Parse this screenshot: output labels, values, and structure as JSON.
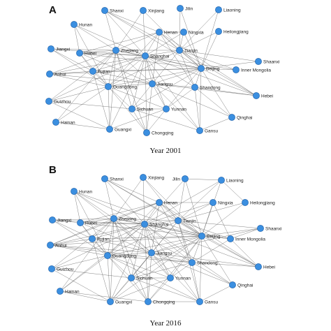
{
  "colors": {
    "node": "#3b8fe0",
    "node_border": "#1d5fa8",
    "edge": "#5a5a5a"
  },
  "panels": [
    {
      "letter": "A",
      "caption": "Year 2001",
      "nodes": [
        "Shanxi",
        "Xinjiang",
        "Jilin",
        "Liaoning",
        "Hunan",
        "Heilongjiang",
        "Henan",
        "Ningxia",
        "Jiangxi",
        "Hubei",
        "Zhejiang",
        "Shanghai",
        "Tianjin",
        "Shaanxi",
        "Fujian",
        "Beijing",
        "Inner Mongolia",
        "Anhui",
        "Guangdong",
        "Jiangsu",
        "Shandong",
        "Hebei",
        "Guizhou",
        "Sichuan",
        "Yunnan",
        "Qinghai",
        "Hainan",
        "Guangxi",
        "Chongqing",
        "Gansu"
      ],
      "edges": [
        [
          "Shanghai",
          "Beijing"
        ],
        [
          "Shanghai",
          "Tianjin"
        ],
        [
          "Shanghai",
          "Zhejiang"
        ],
        [
          "Shanghai",
          "Jiangsu"
        ],
        [
          "Shanghai",
          "Guangdong"
        ],
        [
          "Shanghai",
          "Henan"
        ],
        [
          "Shanghai",
          "Hunan"
        ],
        [
          "Shanghai",
          "Hubei"
        ],
        [
          "Shanghai",
          "Fujian"
        ],
        [
          "Shanghai",
          "Anhui"
        ],
        [
          "Shanghai",
          "Jiangxi"
        ],
        [
          "Shanghai",
          "Sichuan"
        ],
        [
          "Shanghai",
          "Chongqing"
        ],
        [
          "Shanghai",
          "Shandong"
        ],
        [
          "Shanghai",
          "Shanxi"
        ],
        [
          "Shanghai",
          "Xinjiang"
        ],
        [
          "Shanghai",
          "Guangxi"
        ],
        [
          "Shanghai",
          "Yunnan"
        ],
        [
          "Shanghai",
          "Ningxia"
        ],
        [
          "Shanghai",
          "Hebei"
        ],
        [
          "Shanghai",
          "Inner Mongolia"
        ],
        [
          "Shanghai",
          "Guizhou"
        ],
        [
          "Shanghai",
          "Gansu"
        ],
        [
          "Beijing",
          "Tianjin"
        ],
        [
          "Beijing",
          "Zhejiang"
        ],
        [
          "Beijing",
          "Jiangsu"
        ],
        [
          "Beijing",
          "Guangdong"
        ],
        [
          "Beijing",
          "Henan"
        ],
        [
          "Beijing",
          "Shandong"
        ],
        [
          "Beijing",
          "Hebei"
        ],
        [
          "Beijing",
          "Inner Mongolia"
        ],
        [
          "Beijing",
          "Shaanxi"
        ],
        [
          "Beijing",
          "Heilongjiang"
        ],
        [
          "Beijing",
          "Liaoning"
        ],
        [
          "Beijing",
          "Jilin"
        ],
        [
          "Beijing",
          "Ningxia"
        ],
        [
          "Beijing",
          "Qinghai"
        ],
        [
          "Beijing",
          "Gansu"
        ],
        [
          "Beijing",
          "Yunnan"
        ],
        [
          "Beijing",
          "Sichuan"
        ],
        [
          "Beijing",
          "Hubei"
        ],
        [
          "Beijing",
          "Shanxi"
        ],
        [
          "Beijing",
          "Xinjiang"
        ],
        [
          "Beijing",
          "Fujian"
        ],
        [
          "Beijing",
          "Anhui"
        ],
        [
          "Tianjin",
          "Zhejiang"
        ],
        [
          "Tianjin",
          "Jiangsu"
        ],
        [
          "Tianjin",
          "Guangdong"
        ],
        [
          "Tianjin",
          "Henan"
        ],
        [
          "Tianjin",
          "Hebei"
        ],
        [
          "Tianjin",
          "Liaoning"
        ],
        [
          "Tianjin",
          "Jilin"
        ],
        [
          "Tianjin",
          "Shanxi"
        ],
        [
          "Tianjin",
          "Shandong"
        ],
        [
          "Tianjin",
          "Heilongjiang"
        ],
        [
          "Tianjin",
          "Ningxia"
        ],
        [
          "Tianjin",
          "Shaanxi"
        ],
        [
          "Tianjin",
          "Inner Mongolia"
        ],
        [
          "Zhejiang",
          "Jiangsu"
        ],
        [
          "Zhejiang",
          "Guangdong"
        ],
        [
          "Zhejiang",
          "Fujian"
        ],
        [
          "Zhejiang",
          "Hubei"
        ],
        [
          "Zhejiang",
          "Hunan"
        ],
        [
          "Zhejiang",
          "Jiangxi"
        ],
        [
          "Zhejiang",
          "Anhui"
        ],
        [
          "Zhejiang",
          "Sichuan"
        ],
        [
          "Zhejiang",
          "Guangxi"
        ],
        [
          "Zhejiang",
          "Henan"
        ],
        [
          "Zhejiang",
          "Shanxi"
        ],
        [
          "Zhejiang",
          "Guizhou"
        ],
        [
          "Zhejiang",
          "Chongqing"
        ],
        [
          "Zhejiang",
          "Hainan"
        ],
        [
          "Guangdong",
          "Jiangsu"
        ],
        [
          "Guangdong",
          "Fujian"
        ],
        [
          "Guangdong",
          "Hunan"
        ],
        [
          "Guangdong",
          "Hubei"
        ],
        [
          "Guangdong",
          "Guangxi"
        ],
        [
          "Guangdong",
          "Hainan"
        ],
        [
          "Guangdong",
          "Guizhou"
        ],
        [
          "Guangdong",
          "Sichuan"
        ],
        [
          "Guangdong",
          "Chongqing"
        ],
        [
          "Guangdong",
          "Yunnan"
        ],
        [
          "Guangdong",
          "Anhui"
        ],
        [
          "Guangdong",
          "Jiangxi"
        ],
        [
          "Guangdong",
          "Henan"
        ],
        [
          "Jiangsu",
          "Shandong"
        ],
        [
          "Jiangsu",
          "Anhui"
        ],
        [
          "Jiangsu",
          "Henan"
        ],
        [
          "Jiangsu",
          "Sichuan"
        ],
        [
          "Jiangsu",
          "Hubei"
        ],
        [
          "Jiangsu",
          "Fujian"
        ],
        [
          "Jiangsu",
          "Yunnan"
        ],
        [
          "Jiangsu",
          "Chongqing"
        ],
        [
          "Jiangsu",
          "Gansu"
        ],
        [
          "Jiangsu",
          "Qinghai"
        ],
        [
          "Jiangsu",
          "Hebei"
        ],
        [
          "Henan",
          "Hubei"
        ],
        [
          "Henan",
          "Shanxi"
        ],
        [
          "Henan",
          "Hebei"
        ],
        [
          "Henan",
          "Shandong"
        ],
        [
          "Henan",
          "Ningxia"
        ],
        [
          "Shandong",
          "Hebei"
        ],
        [
          "Shandong",
          "Gansu"
        ],
        [
          "Shandong",
          "Yunnan"
        ],
        [
          "Shandong",
          "Qinghai"
        ],
        [
          "Sichuan",
          "Chongqing"
        ],
        [
          "Sichuan",
          "Yunnan"
        ],
        [
          "Sichuan",
          "Guizhou"
        ],
        [
          "Sichuan",
          "Gansu"
        ],
        [
          "Hunan",
          "Hubei"
        ],
        [
          "Hubei",
          "Fujian"
        ],
        [
          "Fujian",
          "Guangxi"
        ],
        [
          "Anhui",
          "Fujian"
        ],
        [
          "Guizhou",
          "Guangxi"
        ],
        [
          "Hainan",
          "Guangxi"
        ],
        [
          "Chongqing",
          "Yunnan"
        ],
        [
          "Gansu",
          "Qinghai"
        ],
        [
          "Yunnan",
          "Guangxi"
        ],
        [
          "Xinjiang",
          "Zhejiang"
        ],
        [
          "Jiangxi",
          "Fujian"
        ]
      ]
    },
    {
      "letter": "B",
      "caption": "Year 2016",
      "nodes": [
        "Shanxi",
        "Xinjiang",
        "Jilin",
        "Liaoning",
        "Hunan",
        "Henan",
        "Ningxia",
        "Heilongjiang",
        "Jiangxi",
        "Hubei",
        "Zhejiang",
        "Shanghai",
        "Tianjin",
        "Shaanxi",
        "Fujian",
        "Beijing",
        "Inner Mongolia",
        "Anhui",
        "Guangdong",
        "Jiangsu",
        "Shandong",
        "Hebei",
        "Guizhou",
        "Sichuan",
        "Yunnan",
        "Qinghai",
        "Hainan",
        "Guangxi",
        "Chongqing",
        "Gansu"
      ],
      "edges": [
        [
          "Shanghai",
          "Beijing"
        ],
        [
          "Shanghai",
          "Tianjin"
        ],
        [
          "Shanghai",
          "Zhejiang"
        ],
        [
          "Shanghai",
          "Jiangsu"
        ],
        [
          "Shanghai",
          "Guangdong"
        ],
        [
          "Shanghai",
          "Henan"
        ],
        [
          "Shanghai",
          "Hunan"
        ],
        [
          "Shanghai",
          "Hubei"
        ],
        [
          "Shanghai",
          "Fujian"
        ],
        [
          "Shanghai",
          "Anhui"
        ],
        [
          "Shanghai",
          "Jiangxi"
        ],
        [
          "Shanghai",
          "Sichuan"
        ],
        [
          "Shanghai",
          "Chongqing"
        ],
        [
          "Shanghai",
          "Shandong"
        ],
        [
          "Shanghai",
          "Shanxi"
        ],
        [
          "Shanghai",
          "Xinjiang"
        ],
        [
          "Shanghai",
          "Guangxi"
        ],
        [
          "Shanghai",
          "Yunnan"
        ],
        [
          "Shanghai",
          "Ningxia"
        ],
        [
          "Shanghai",
          "Hebei"
        ],
        [
          "Shanghai",
          "Inner Mongolia"
        ],
        [
          "Shanghai",
          "Guizhou"
        ],
        [
          "Shanghai",
          "Gansu"
        ],
        [
          "Shanghai",
          "Hainan"
        ],
        [
          "Shanghai",
          "Qinghai"
        ],
        [
          "Shanghai",
          "Jilin"
        ],
        [
          "Shanghai",
          "Liaoning"
        ],
        [
          "Beijing",
          "Tianjin"
        ],
        [
          "Beijing",
          "Zhejiang"
        ],
        [
          "Beijing",
          "Jiangsu"
        ],
        [
          "Beijing",
          "Guangdong"
        ],
        [
          "Beijing",
          "Henan"
        ],
        [
          "Beijing",
          "Shandong"
        ],
        [
          "Beijing",
          "Hebei"
        ],
        [
          "Beijing",
          "Inner Mongolia"
        ],
        [
          "Beijing",
          "Shaanxi"
        ],
        [
          "Beijing",
          "Heilongjiang"
        ],
        [
          "Beijing",
          "Liaoning"
        ],
        [
          "Beijing",
          "Jilin"
        ],
        [
          "Beijing",
          "Ningxia"
        ],
        [
          "Beijing",
          "Qinghai"
        ],
        [
          "Beijing",
          "Gansu"
        ],
        [
          "Beijing",
          "Yunnan"
        ],
        [
          "Beijing",
          "Sichuan"
        ],
        [
          "Beijing",
          "Hubei"
        ],
        [
          "Beijing",
          "Shanxi"
        ],
        [
          "Beijing",
          "Xinjiang"
        ],
        [
          "Beijing",
          "Fujian"
        ],
        [
          "Beijing",
          "Anhui"
        ],
        [
          "Beijing",
          "Hunan"
        ],
        [
          "Beijing",
          "Chongqing"
        ],
        [
          "Beijing",
          "Guangxi"
        ],
        [
          "Tianjin",
          "Zhejiang"
        ],
        [
          "Tianjin",
          "Jiangsu"
        ],
        [
          "Tianjin",
          "Guangdong"
        ],
        [
          "Tianjin",
          "Henan"
        ],
        [
          "Tianjin",
          "Hebei"
        ],
        [
          "Tianjin",
          "Liaoning"
        ],
        [
          "Tianjin",
          "Jilin"
        ],
        [
          "Tianjin",
          "Shanxi"
        ],
        [
          "Tianjin",
          "Shandong"
        ],
        [
          "Tianjin",
          "Heilongjiang"
        ],
        [
          "Tianjin",
          "Ningxia"
        ],
        [
          "Tianjin",
          "Shaanxi"
        ],
        [
          "Tianjin",
          "Inner Mongolia"
        ],
        [
          "Tianjin",
          "Xinjiang"
        ],
        [
          "Tianjin",
          "Gansu"
        ],
        [
          "Tianjin",
          "Sichuan"
        ],
        [
          "Zhejiang",
          "Jiangsu"
        ],
        [
          "Zhejiang",
          "Guangdong"
        ],
        [
          "Zhejiang",
          "Fujian"
        ],
        [
          "Zhejiang",
          "Hubei"
        ],
        [
          "Zhejiang",
          "Hunan"
        ],
        [
          "Zhejiang",
          "Jiangxi"
        ],
        [
          "Zhejiang",
          "Anhui"
        ],
        [
          "Zhejiang",
          "Sichuan"
        ],
        [
          "Zhejiang",
          "Guangxi"
        ],
        [
          "Zhejiang",
          "Henan"
        ],
        [
          "Zhejiang",
          "Shanxi"
        ],
        [
          "Zhejiang",
          "Guizhou"
        ],
        [
          "Zhejiang",
          "Chongqing"
        ],
        [
          "Zhejiang",
          "Hainan"
        ],
        [
          "Zhejiang",
          "Yunnan"
        ],
        [
          "Zhejiang",
          "Shandong"
        ],
        [
          "Guangdong",
          "Jiangsu"
        ],
        [
          "Guangdong",
          "Fujian"
        ],
        [
          "Guangdong",
          "Hunan"
        ],
        [
          "Guangdong",
          "Hubei"
        ],
        [
          "Guangdong",
          "Guangxi"
        ],
        [
          "Guangdong",
          "Hainan"
        ],
        [
          "Guangdong",
          "Guizhou"
        ],
        [
          "Guangdong",
          "Sichuan"
        ],
        [
          "Guangdong",
          "Chongqing"
        ],
        [
          "Guangdong",
          "Yunnan"
        ],
        [
          "Guangdong",
          "Anhui"
        ],
        [
          "Guangdong",
          "Jiangxi"
        ],
        [
          "Guangdong",
          "Henan"
        ],
        [
          "Guangdong",
          "Shandong"
        ],
        [
          "Guangdong",
          "Gansu"
        ],
        [
          "Jiangsu",
          "Shandong"
        ],
        [
          "Jiangsu",
          "Anhui"
        ],
        [
          "Jiangsu",
          "Henan"
        ],
        [
          "Jiangsu",
          "Sichuan"
        ],
        [
          "Jiangsu",
          "Hubei"
        ],
        [
          "Jiangsu",
          "Fujian"
        ],
        [
          "Jiangsu",
          "Yunnan"
        ],
        [
          "Jiangsu",
          "Chongqing"
        ],
        [
          "Jiangsu",
          "Gansu"
        ],
        [
          "Jiangsu",
          "Qinghai"
        ],
        [
          "Jiangsu",
          "Hebei"
        ],
        [
          "Jiangsu",
          "Guangxi"
        ],
        [
          "Jiangsu",
          "Hunan"
        ],
        [
          "Jiangsu",
          "Shaanxi"
        ],
        [
          "Henan",
          "Hubei"
        ],
        [
          "Henan",
          "Shanxi"
        ],
        [
          "Henan",
          "Hebei"
        ],
        [
          "Henan",
          "Shandong"
        ],
        [
          "Henan",
          "Ningxia"
        ],
        [
          "Henan",
          "Anhui"
        ],
        [
          "Shandong",
          "Hebei"
        ],
        [
          "Shandong",
          "Gansu"
        ],
        [
          "Shandong",
          "Yunnan"
        ],
        [
          "Shandong",
          "Qinghai"
        ],
        [
          "Shandong",
          "Inner Mongolia"
        ],
        [
          "Shandong",
          "Sichuan"
        ],
        [
          "Shandong",
          "Anhui"
        ],
        [
          "Sichuan",
          "Chongqing"
        ],
        [
          "Sichuan",
          "Yunnan"
        ],
        [
          "Sichuan",
          "Guizhou"
        ],
        [
          "Sichuan",
          "Gansu"
        ],
        [
          "Sichuan",
          "Guangxi"
        ],
        [
          "Hunan",
          "Hubei"
        ],
        [
          "Hubei",
          "Fujian"
        ],
        [
          "Fujian",
          "Guangxi"
        ],
        [
          "Anhui",
          "Fujian"
        ],
        [
          "Guizhou",
          "Guangxi"
        ],
        [
          "Hainan",
          "Guangxi"
        ],
        [
          "Chongqing",
          "Yunnan"
        ],
        [
          "Gansu",
          "Qinghai"
        ],
        [
          "Yunnan",
          "Guangxi"
        ],
        [
          "Xinjiang",
          "Zhejiang"
        ],
        [
          "Jiangxi",
          "Fujian"
        ],
        [
          "Jiangxi",
          "Hubei"
        ],
        [
          "Heilongjiang",
          "Liaoning"
        ],
        [
          "Jilin",
          "Liaoning"
        ],
        [
          "Hebei",
          "Inner Mongolia"
        ],
        [
          "Shaanxi",
          "Inner Mongolia"
        ],
        [
          "Ningxia",
          "Inner Mongolia"
        ],
        [
          "Chongqing",
          "Gansu"
        ],
        [
          "Hainan",
          "Chongqing"
        ]
      ]
    }
  ]
}
